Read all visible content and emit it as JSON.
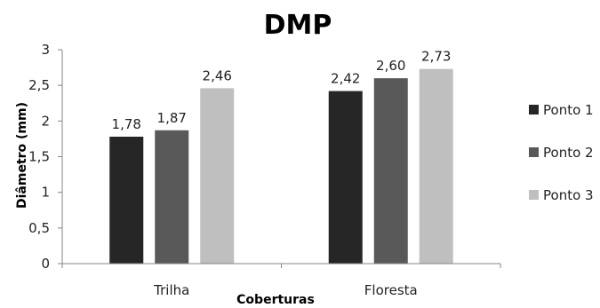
{
  "chart_data": {
    "type": "bar",
    "title": "DMP",
    "xlabel": "Coberturas",
    "ylabel": "Diâmetro (mm)",
    "ylim": [
      0,
      3
    ],
    "yticks": [
      "0",
      "0,5",
      "1",
      "1,5",
      "2",
      "2,5",
      "3"
    ],
    "grid": false,
    "legend_position": "right",
    "categories": [
      "Trilha",
      "Floresta"
    ],
    "series": [
      {
        "name": "Ponto 1",
        "values": [
          1.78,
          2.42
        ],
        "labels": [
          "1,78",
          "2,42"
        ],
        "color": "#262626"
      },
      {
        "name": "Ponto 2",
        "values": [
          1.87,
          2.6
        ],
        "labels": [
          "1,87",
          "2,60"
        ],
        "color": "#595959"
      },
      {
        "name": "Ponto 3",
        "values": [
          2.46,
          2.73
        ],
        "labels": [
          "2,46",
          "2,73"
        ],
        "color": "#bfbfbf"
      }
    ]
  }
}
